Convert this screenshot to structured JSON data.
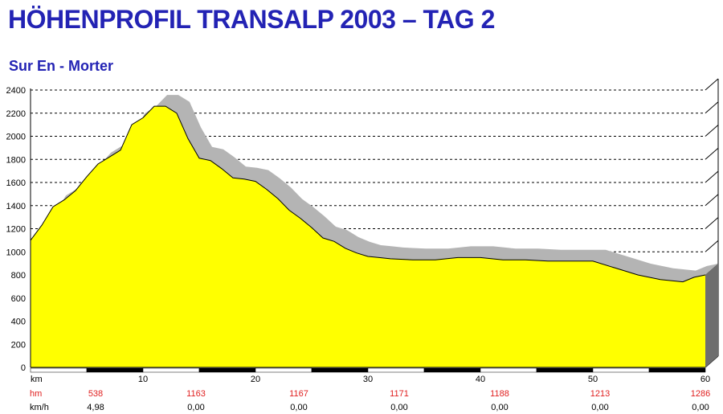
{
  "title": "HÖHENPROFIL TRANSALP 2003 – TAG 2",
  "subtitle": "Sur En - Morter",
  "colors": {
    "title": "#2323b4",
    "profile_fill": "#ffff00",
    "shadow_fill": "#b4b4b4",
    "grid": "#000000",
    "hm_text": "#e02020"
  },
  "chart_data": {
    "type": "area",
    "title": "HÖHENPROFIL TRANSALP 2003 – TAG 2",
    "subtitle": "Sur En - Morter",
    "xlabel": "km",
    "ylabel": "",
    "xlim": [
      0,
      60
    ],
    "ylim": [
      0,
      2400
    ],
    "x_ticks": [
      10,
      20,
      30,
      40,
      50,
      60
    ],
    "y_ticks": [
      0,
      200,
      400,
      600,
      800,
      1000,
      1200,
      1400,
      1600,
      1800,
      2000,
      2200,
      2400
    ],
    "grid": true,
    "series": [
      {
        "x": [
          0,
          1,
          2,
          3,
          4,
          5,
          6,
          7,
          8,
          9,
          10,
          11,
          12,
          13,
          14,
          15,
          16,
          17,
          18,
          19,
          20,
          21,
          22,
          23,
          24,
          25,
          26,
          27,
          28,
          29,
          30,
          31,
          32,
          34,
          36,
          38,
          40,
          42,
          44,
          46,
          48,
          50,
          52,
          54,
          56,
          58,
          59,
          60
        ],
        "y": [
          1100,
          1230,
          1390,
          1450,
          1530,
          1650,
          1760,
          1820,
          1880,
          2100,
          2160,
          2260,
          2260,
          2200,
          1980,
          1810,
          1790,
          1720,
          1640,
          1630,
          1610,
          1540,
          1460,
          1360,
          1290,
          1210,
          1120,
          1090,
          1030,
          990,
          960,
          950,
          940,
          930,
          930,
          950,
          950,
          930,
          930,
          920,
          920,
          920,
          860,
          800,
          760,
          740,
          780,
          800
        ]
      }
    ],
    "hm_row": {
      "label": "hm",
      "values": [
        "538",
        "1163",
        "1167",
        "1171",
        "1188",
        "1213",
        "1286"
      ]
    },
    "kmh_row": {
      "label": "km/h",
      "values": [
        "4,98",
        "0,00",
        "0,00",
        "0,00",
        "0,00",
        "0,00",
        "0,00"
      ]
    }
  }
}
